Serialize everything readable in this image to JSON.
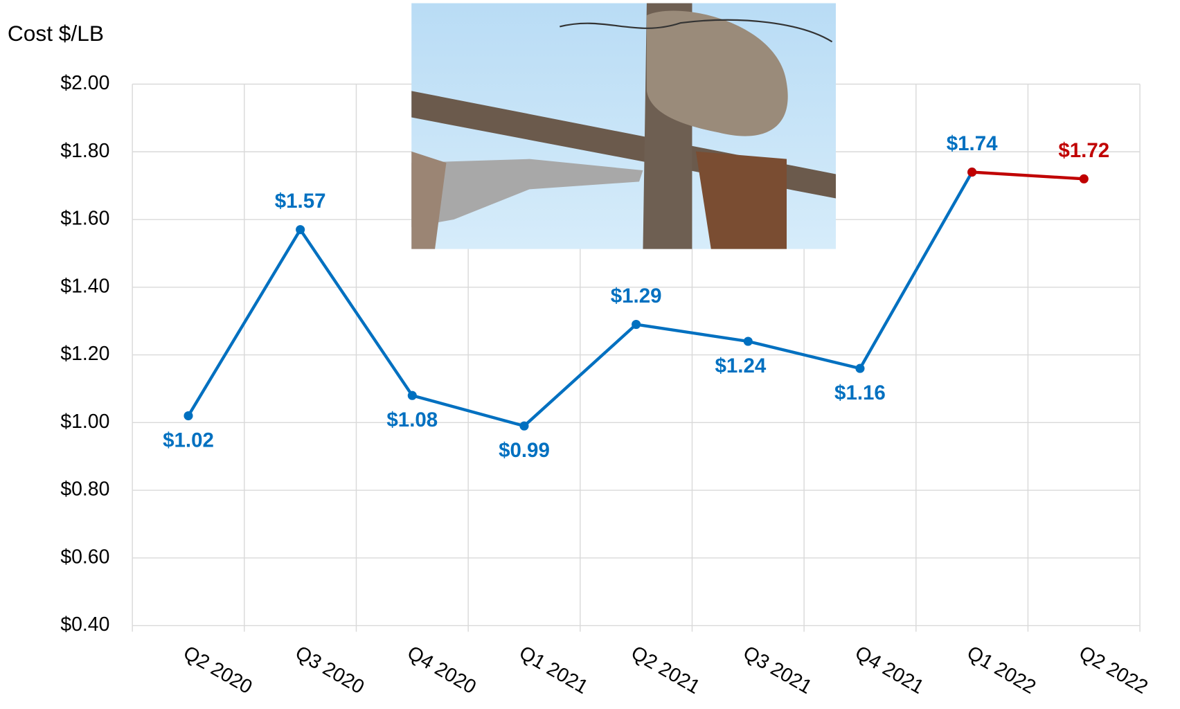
{
  "chart_data": {
    "type": "line",
    "y_label": "Cost $/LB",
    "categories": [
      "Q2 2020",
      "Q3 2020",
      "Q4 2020",
      "Q1 2021",
      "Q2 2021",
      "Q3 2021",
      "Q4 2021",
      "Q1 2022",
      "Q2 2022"
    ],
    "series": [
      {
        "color": "#0070c0",
        "values": [
          1.02,
          1.57,
          1.08,
          0.99,
          1.29,
          1.24,
          1.16,
          1.74,
          null
        ],
        "value_labels": [
          "$1.02",
          "$1.57",
          "$1.08",
          "$0.99",
          "$1.29",
          "$1.24",
          "$1.16",
          "$1.74",
          null
        ]
      },
      {
        "color": "#c00000",
        "values": [
          null,
          null,
          null,
          null,
          null,
          null,
          null,
          1.74,
          1.72
        ],
        "value_labels": [
          null,
          null,
          null,
          null,
          null,
          null,
          null,
          null,
          "$1.72"
        ]
      }
    ],
    "ylim": [
      0.4,
      2.0
    ],
    "yticks": [
      {
        "value": 0.4,
        "label": "$0.40"
      },
      {
        "value": 0.6,
        "label": "$0.60"
      },
      {
        "value": 0.8,
        "label": "$0.80"
      },
      {
        "value": 1.0,
        "label": "$1.00"
      },
      {
        "value": 1.2,
        "label": "$1.20"
      },
      {
        "value": 1.4,
        "label": "$1.40"
      },
      {
        "value": 1.6,
        "label": "$1.60"
      },
      {
        "value": 1.8,
        "label": "$1.80"
      },
      {
        "value": 2.0,
        "label": "$2.00"
      }
    ],
    "grid": true
  }
}
